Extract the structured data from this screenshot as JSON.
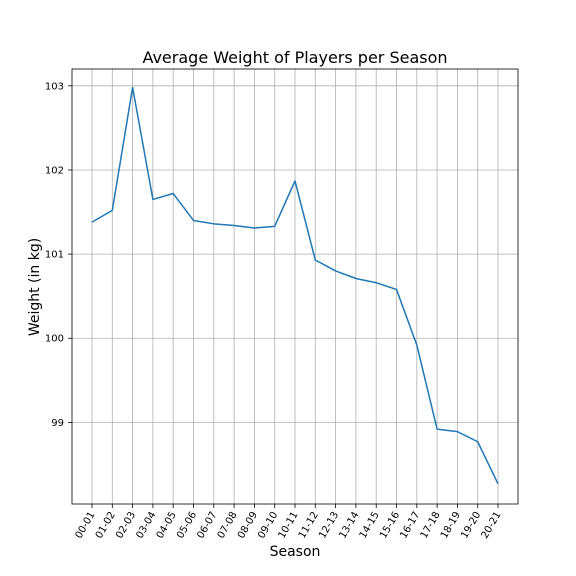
{
  "chart_data": {
    "type": "line",
    "title": "Average Weight of Players per Season",
    "xlabel": "Season",
    "ylabel": "Weight (in kg)",
    "categories": [
      "00-01",
      "01-02",
      "02-03",
      "03-04",
      "04-05",
      "05-06",
      "06-07",
      "07-08",
      "08-09",
      "09-10",
      "10-11",
      "11-12",
      "12-13",
      "13-14",
      "14-15",
      "15-16",
      "16-17",
      "17-18",
      "18-19",
      "19-20",
      "20-21"
    ],
    "series": [
      {
        "values": [
          101.38,
          101.52,
          102.98,
          101.65,
          101.72,
          101.4,
          101.36,
          101.34,
          101.31,
          101.33,
          101.87,
          100.93,
          100.8,
          100.71,
          100.66,
          100.58,
          99.92,
          98.92,
          98.89,
          98.77,
          98.27
        ],
        "color": "#1f77b4"
      }
    ],
    "yticks": [
      99,
      100,
      101,
      102,
      103
    ],
    "ylim": [
      98.03,
      103.2
    ],
    "grid": true
  }
}
